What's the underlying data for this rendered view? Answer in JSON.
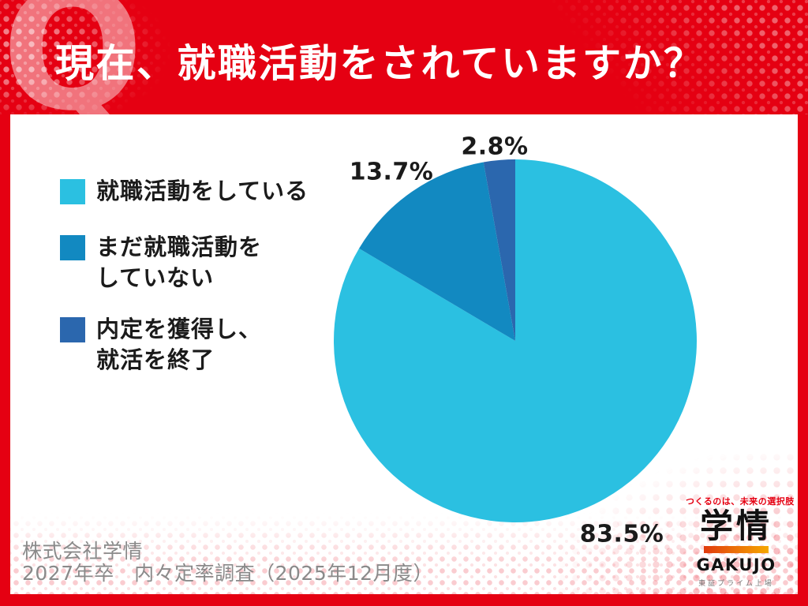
{
  "header": {
    "q_watermark": "Q",
    "title": "現在、就職活動をされていますか？",
    "bg_color": "#e50012",
    "title_color": "#ffffff"
  },
  "legend": {
    "items": [
      {
        "color": "#2bc0e1",
        "line1": "就職活動をしている",
        "line2": ""
      },
      {
        "color": "#1289c1",
        "line1": "まだ就職活動を",
        "line2": "していない"
      },
      {
        "color": "#2b67ae",
        "line1": "内定を獲得し、",
        "line2": "就活を終了"
      }
    ]
  },
  "chart_data": {
    "type": "pie",
    "title": "現在、就職活動をされていますか？",
    "start_angle": "12-oclock",
    "direction": "clockwise",
    "legend_position": "left",
    "slices": [
      {
        "label": "就職活動をしている",
        "value": 83.5,
        "pct_label": "83.5%",
        "color": "#2bc0e1"
      },
      {
        "label": "まだ就職活動をしていない",
        "value": 13.7,
        "pct_label": "13.7%",
        "color": "#1289c1"
      },
      {
        "label": "内定を獲得し、就活を終了",
        "value": 2.8,
        "pct_label": "2.8%",
        "color": "#2b67ae"
      }
    ]
  },
  "footer": {
    "company": "株式会社学情",
    "survey": "2027年卒　内々定率調査（2025年12月度）"
  },
  "logo": {
    "tagline": "つくるのは、未来の選択肢",
    "kanji": "学情",
    "name": "GAKUJO",
    "listing": "東証プライム上場",
    "accent_red": "#e50012"
  }
}
